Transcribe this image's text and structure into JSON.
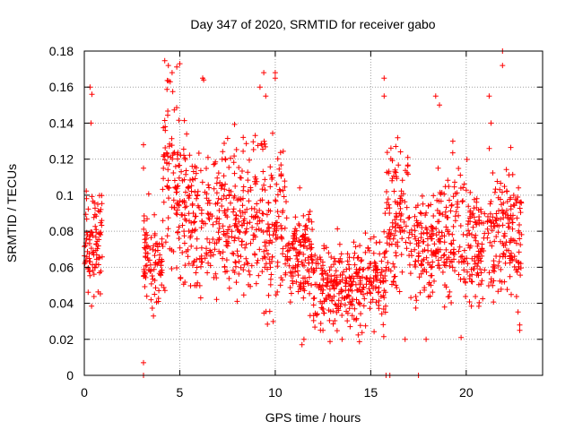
{
  "colors": {
    "series": "#ff0000",
    "grid": "#a0a0a0",
    "axis": "#000000"
  },
  "chart_data": {
    "type": "scatter",
    "title": "Day 347 of 2020, SRMTID for receiver gabo",
    "xlabel": "GPS time / hours",
    "ylabel": "SRMTID / TECUs",
    "xlim": [
      0,
      24.0
    ],
    "ylim": [
      0,
      0.18
    ],
    "grid": true,
    "marker": "plus",
    "x_ticks": [
      0,
      5,
      10,
      15,
      20
    ],
    "x_tick_labels": [
      "0",
      "5",
      "10",
      "15",
      "20"
    ],
    "y_ticks": [
      0,
      0.02,
      0.04,
      0.06,
      0.08,
      0.1,
      0.12,
      0.14,
      0.16,
      0.18
    ],
    "y_tick_labels": [
      "0",
      "0.02",
      "0.04",
      "0.06",
      "0.08",
      "0.1",
      "0.12",
      "0.14",
      "0.16",
      "0.18"
    ],
    "segments": [
      {
        "x_start": 0.0,
        "x_end": 0.95,
        "mean": 0.075,
        "spread": 0.014,
        "count": 90
      },
      {
        "x_start": 3.1,
        "x_end": 4.1,
        "mean": 0.063,
        "spread": 0.013,
        "count": 90
      },
      {
        "x_start": 4.1,
        "x_end": 5.0,
        "mean": 0.11,
        "spread": 0.025,
        "count": 90
      },
      {
        "x_start": 5.0,
        "x_end": 8.0,
        "mean": 0.085,
        "spread": 0.022,
        "count": 260
      },
      {
        "x_start": 8.0,
        "x_end": 10.5,
        "mean": 0.085,
        "spread": 0.022,
        "count": 220
      },
      {
        "x_start": 10.5,
        "x_end": 12.0,
        "mean": 0.068,
        "spread": 0.014,
        "count": 140
      },
      {
        "x_start": 12.0,
        "x_end": 14.0,
        "mean": 0.05,
        "spread": 0.012,
        "count": 170
      },
      {
        "x_start": 14.0,
        "x_end": 15.8,
        "mean": 0.052,
        "spread": 0.013,
        "count": 150
      },
      {
        "x_start": 15.8,
        "x_end": 17.0,
        "mean": 0.092,
        "spread": 0.02,
        "count": 110
      },
      {
        "x_start": 17.0,
        "x_end": 18.5,
        "mean": 0.07,
        "spread": 0.015,
        "count": 120
      },
      {
        "x_start": 18.5,
        "x_end": 21.5,
        "mean": 0.075,
        "spread": 0.017,
        "count": 250
      },
      {
        "x_start": 21.5,
        "x_end": 22.9,
        "mean": 0.08,
        "spread": 0.017,
        "count": 130
      }
    ],
    "highlight_points": [
      {
        "x": 0.3,
        "y": 0.16
      },
      {
        "x": 0.4,
        "y": 0.156
      },
      {
        "x": 0.35,
        "y": 0.14
      },
      {
        "x": 3.1,
        "y": 0.128
      },
      {
        "x": 3.1,
        "y": 0.115
      },
      {
        "x": 3.1,
        "y": 0.007
      },
      {
        "x": 3.1,
        "y": 0.0
      },
      {
        "x": 4.4,
        "y": 0.172
      },
      {
        "x": 4.6,
        "y": 0.168
      },
      {
        "x": 4.5,
        "y": 0.163
      },
      {
        "x": 5.0,
        "y": 0.173
      },
      {
        "x": 6.2,
        "y": 0.165
      },
      {
        "x": 6.25,
        "y": 0.164
      },
      {
        "x": 9.4,
        "y": 0.168
      },
      {
        "x": 9.5,
        "y": 0.155
      },
      {
        "x": 9.2,
        "y": 0.16
      },
      {
        "x": 10.0,
        "y": 0.168
      },
      {
        "x": 10.0,
        "y": 0.165
      },
      {
        "x": 11.4,
        "y": 0.017
      },
      {
        "x": 11.5,
        "y": 0.02
      },
      {
        "x": 12.5,
        "y": 0.025
      },
      {
        "x": 13.5,
        "y": 0.02
      },
      {
        "x": 15.7,
        "y": 0.165
      },
      {
        "x": 15.7,
        "y": 0.155
      },
      {
        "x": 15.8,
        "y": 0.0
      },
      {
        "x": 16.0,
        "y": 0.0
      },
      {
        "x": 16.8,
        "y": 0.02
      },
      {
        "x": 17.5,
        "y": 0.0
      },
      {
        "x": 17.9,
        "y": 0.02
      },
      {
        "x": 18.4,
        "y": 0.155
      },
      {
        "x": 18.6,
        "y": 0.15
      },
      {
        "x": 19.3,
        "y": 0.13
      },
      {
        "x": 21.2,
        "y": 0.155
      },
      {
        "x": 21.3,
        "y": 0.14
      },
      {
        "x": 21.9,
        "y": 0.18
      },
      {
        "x": 21.9,
        "y": 0.172
      },
      {
        "x": 22.8,
        "y": 0.025
      },
      {
        "x": 22.8,
        "y": 0.028
      }
    ]
  }
}
